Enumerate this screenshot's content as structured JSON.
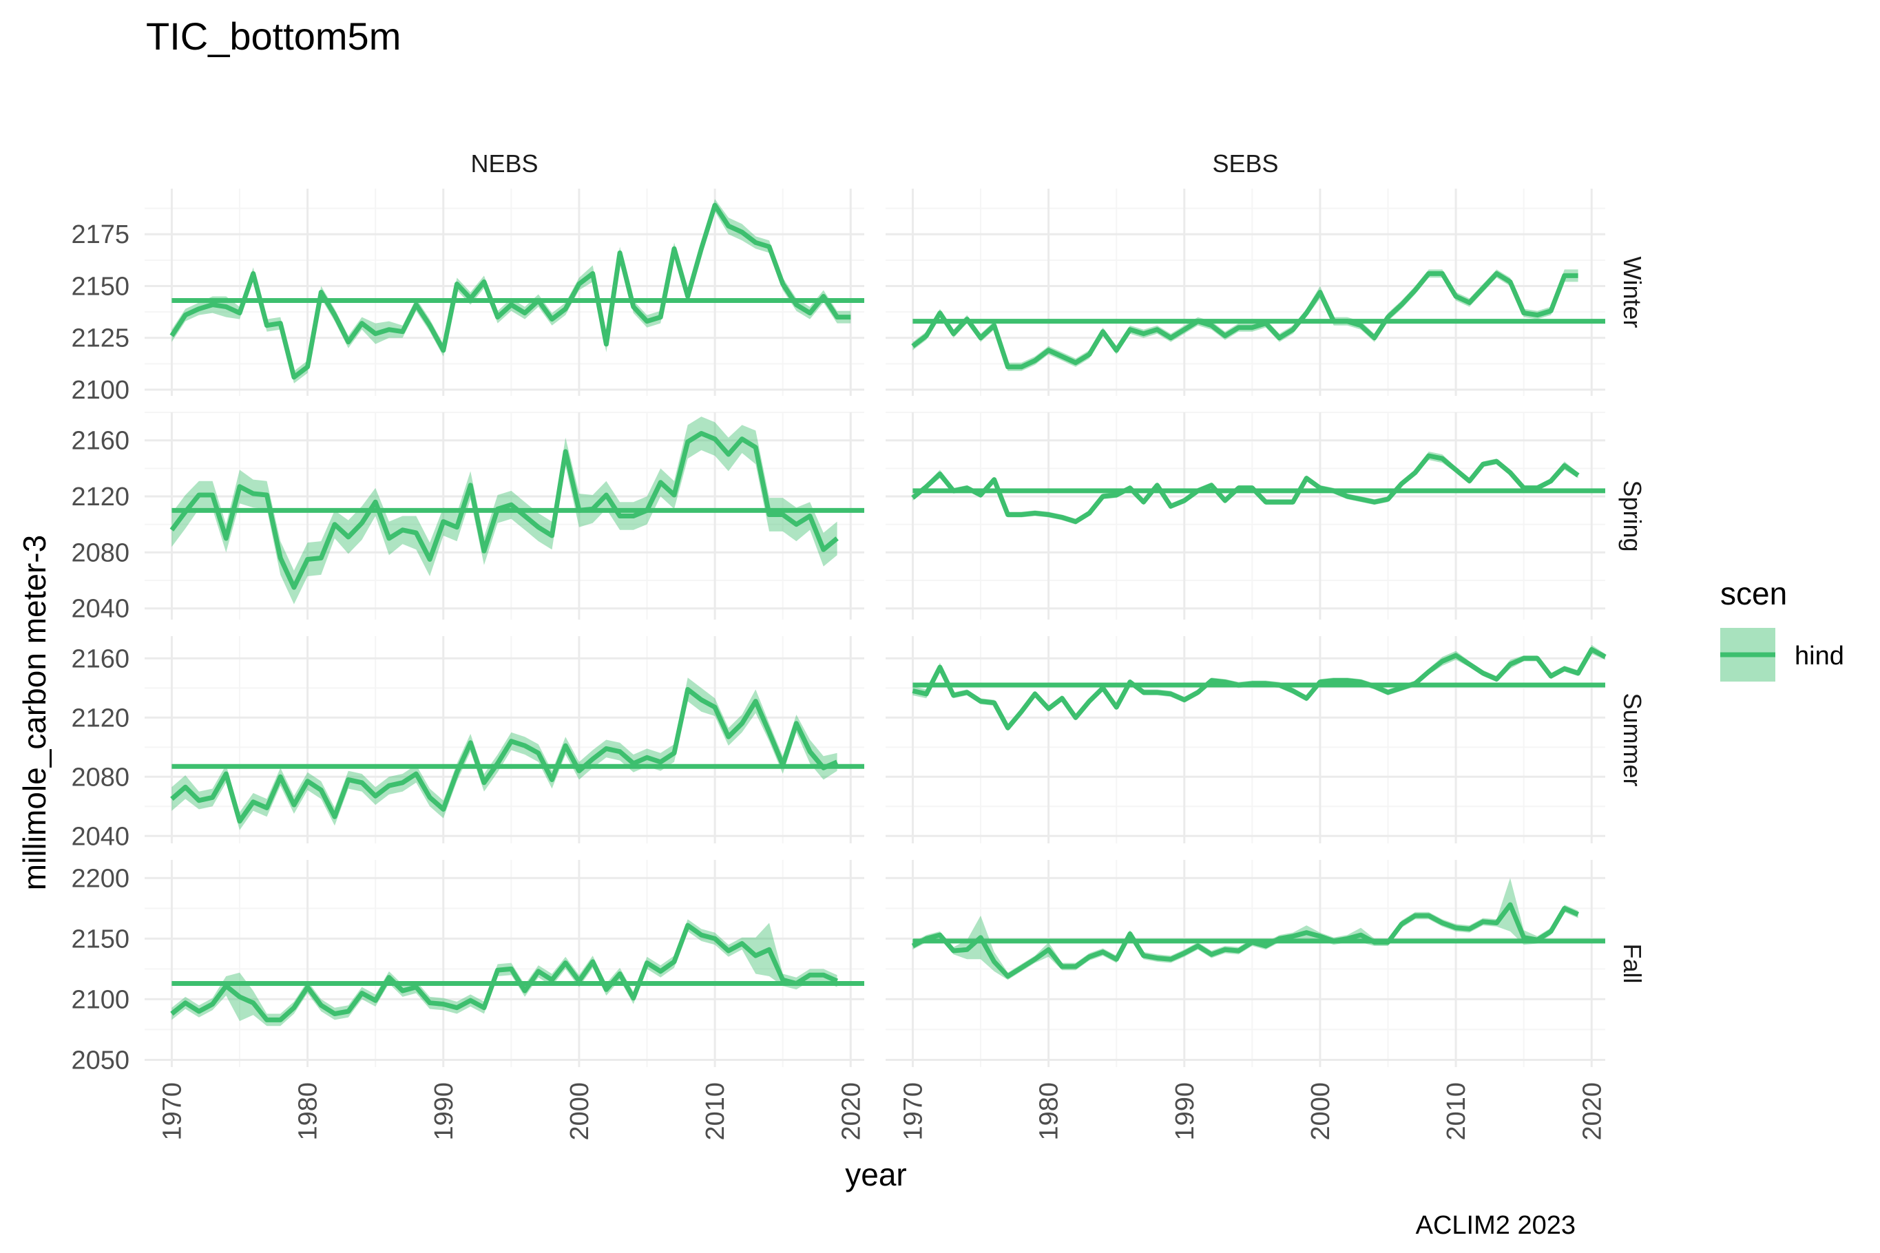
{
  "colors": {
    "series": "#3dbf6e",
    "ribbon": "#3dbf6e",
    "grid_major": "#ebebeb",
    "grid_minor": "#f5f5f5"
  },
  "chart_data": {
    "type": "line",
    "title": "TIC_bottom5m",
    "xlabel": "year",
    "ylabel": "millimole_carbon meter-3",
    "caption": "ACLIM2 2023",
    "legend": {
      "title": "scen",
      "entries": [
        "hind"
      ],
      "position": "right"
    },
    "columns": [
      "NEBS",
      "SEBS"
    ],
    "rows": [
      "Winter",
      "Spring",
      "Summer",
      "Fall"
    ],
    "xlim": [
      1968,
      2021
    ],
    "x_ticks": [
      1970,
      1980,
      1990,
      2000,
      2010,
      2020
    ],
    "x_tick_labels": [
      "1970",
      "1980",
      "1990",
      "2000",
      "2010",
      "2020"
    ],
    "row_axes": [
      {
        "ylim": [
          2097,
          2197
        ],
        "ticks": [
          2100,
          2125,
          2150,
          2175
        ],
        "tick_labels": [
          "2100",
          "2125",
          "2150",
          "2175"
        ]
      },
      {
        "ylim": [
          2032,
          2180
        ],
        "ticks": [
          2040,
          2080,
          2120,
          2160
        ],
        "tick_labels": [
          "2040",
          "2080",
          "2120",
          "2160"
        ]
      },
      {
        "ylim": [
          2035,
          2175
        ],
        "ticks": [
          2040,
          2080,
          2120,
          2160
        ],
        "tick_labels": [
          "2040",
          "2080",
          "2120",
          "2160"
        ]
      },
      {
        "ylim": [
          2044,
          2215
        ],
        "ticks": [
          2050,
          2100,
          2150,
          2200
        ],
        "tick_labels": [
          "2050",
          "2100",
          "2150",
          "2200"
        ]
      }
    ],
    "grid": true,
    "panels": [
      {
        "column": "NEBS",
        "row": "Winter",
        "mean": 2143,
        "x_start": 1970,
        "values": [
          2126,
          2136,
          2139,
          2141,
          2140,
          2137,
          2156,
          2131,
          2132,
          2106,
          2111,
          2147,
          2136,
          2123,
          2132,
          2127,
          2129,
          2128,
          2141,
          2131,
          2119,
          2151,
          2144,
          2152,
          2135,
          2141,
          2137,
          2143,
          2134,
          2139,
          2151,
          2156,
          2122,
          2166,
          2140,
          2133,
          2135,
          2168,
          2145,
          2168,
          2189,
          2179,
          2176,
          2171,
          2169,
          2151,
          2141,
          2137,
          2145,
          2135,
          2135
        ],
        "bands": [
          3,
          3,
          3,
          4,
          5,
          3,
          3,
          3,
          3,
          3,
          3,
          3,
          3,
          3,
          3,
          5,
          4,
          3,
          3,
          3,
          3,
          3,
          3,
          3,
          3,
          3,
          3,
          3,
          3,
          3,
          3,
          4,
          4,
          3,
          3,
          3,
          3,
          3,
          3,
          3,
          3,
          4,
          4,
          3,
          3,
          3,
          3,
          3,
          3,
          3,
          3
        ]
      },
      {
        "column": "SEBS",
        "row": "Winter",
        "mean": 2133,
        "x_start": 1970,
        "values": [
          2121,
          2126,
          2137,
          2127,
          2134,
          2125,
          2131,
          2111,
          2111,
          2114,
          2119,
          2116,
          2113,
          2117,
          2128,
          2119,
          2129,
          2127,
          2129,
          2125,
          2129,
          2133,
          2131,
          2126,
          2130,
          2130,
          2132,
          2125,
          2129,
          2137,
          2147,
          2133,
          2133,
          2131,
          2125,
          2135,
          2141,
          2148,
          2156,
          2156,
          2145,
          2142,
          2149,
          2156,
          2152,
          2137,
          2136,
          2138,
          2155,
          2155
        ],
        "bands": [
          2,
          2,
          2,
          2,
          2,
          2,
          2,
          2,
          2,
          2,
          2,
          2,
          2,
          2,
          2,
          2,
          2,
          2,
          2,
          2,
          2,
          2,
          2,
          2,
          2,
          2,
          2,
          2,
          2,
          2,
          3,
          2,
          2,
          2,
          2,
          2,
          2,
          2,
          2,
          2,
          2,
          2,
          2,
          2,
          2,
          2,
          2,
          2,
          3,
          3
        ]
      },
      {
        "column": "NEBS",
        "row": "Spring",
        "mean": 2110,
        "x_start": 1970,
        "values": [
          2096,
          2109,
          2121,
          2121,
          2090,
          2127,
          2122,
          2121,
          2076,
          2055,
          2075,
          2076,
          2100,
          2091,
          2101,
          2116,
          2090,
          2096,
          2094,
          2075,
          2102,
          2098,
          2128,
          2081,
          2111,
          2114,
          2106,
          2098,
          2092,
          2152,
          2110,
          2111,
          2121,
          2106,
          2106,
          2110,
          2130,
          2121,
          2159,
          2165,
          2161,
          2150,
          2161,
          2155,
          2107,
          2107,
          2100,
          2106,
          2082,
          2090
        ],
        "bands": [
          12,
          12,
          10,
          10,
          10,
          12,
          10,
          10,
          12,
          12,
          12,
          12,
          10,
          12,
          12,
          10,
          12,
          10,
          12,
          12,
          10,
          10,
          10,
          10,
          10,
          10,
          10,
          10,
          10,
          10,
          12,
          10,
          10,
          10,
          10,
          10,
          10,
          10,
          12,
          12,
          12,
          12,
          10,
          12,
          12,
          12,
          12,
          10,
          12,
          12
        ]
      },
      {
        "column": "SEBS",
        "row": "Spring",
        "mean": 2124,
        "x_start": 1970,
        "values": [
          2119,
          2127,
          2136,
          2124,
          2126,
          2121,
          2132,
          2107,
          2107,
          2108,
          2107,
          2105,
          2102,
          2108,
          2120,
          2121,
          2126,
          2116,
          2128,
          2113,
          2117,
          2124,
          2128,
          2117,
          2126,
          2126,
          2116,
          2116,
          2116,
          2133,
          2126,
          2124,
          2120,
          2118,
          2116,
          2118,
          2129,
          2137,
          2149,
          2147,
          2139,
          2131,
          2143,
          2145,
          2137,
          2126,
          2126,
          2131,
          2142,
          2135
        ],
        "bands": [
          2,
          2,
          3,
          2,
          2,
          2,
          2,
          2,
          2,
          2,
          2,
          2,
          2,
          2,
          2,
          2,
          2,
          2,
          2,
          2,
          2,
          2,
          2,
          2,
          2,
          2,
          2,
          2,
          2,
          2,
          2,
          2,
          2,
          2,
          2,
          2,
          2,
          2,
          3,
          3,
          2,
          2,
          2,
          2,
          2,
          2,
          2,
          2,
          3,
          2
        ]
      },
      {
        "column": "NEBS",
        "row": "Summer",
        "mean": 2087,
        "x_start": 1970,
        "values": [
          2065,
          2073,
          2064,
          2066,
          2082,
          2050,
          2063,
          2059,
          2080,
          2061,
          2077,
          2071,
          2053,
          2078,
          2076,
          2067,
          2074,
          2076,
          2082,
          2066,
          2058,
          2083,
          2103,
          2076,
          2089,
          2104,
          2101,
          2096,
          2078,
          2101,
          2084,
          2092,
          2099,
          2097,
          2089,
          2093,
          2090,
          2096,
          2139,
          2132,
          2127,
          2107,
          2116,
          2131,
          2110,
          2088,
          2116,
          2097,
          2086,
          2090
        ],
        "bands": [
          8,
          8,
          6,
          6,
          6,
          6,
          6,
          6,
          6,
          6,
          6,
          6,
          6,
          6,
          6,
          6,
          6,
          6,
          6,
          6,
          6,
          6,
          6,
          6,
          6,
          6,
          6,
          6,
          6,
          6,
          6,
          6,
          6,
          6,
          6,
          6,
          6,
          6,
          8,
          8,
          6,
          6,
          6,
          8,
          6,
          6,
          6,
          8,
          8,
          6
        ]
      },
      {
        "column": "SEBS",
        "row": "Summer",
        "mean": 2142,
        "x_start": 1970,
        "values": [
          2138,
          2136,
          2154,
          2135,
          2137,
          2131,
          2130,
          2113,
          2124,
          2136,
          2126,
          2133,
          2120,
          2131,
          2140,
          2127,
          2144,
          2137,
          2137,
          2136,
          2132,
          2137,
          2145,
          2144,
          2142,
          2143,
          2143,
          2142,
          2138,
          2133,
          2144,
          2145,
          2145,
          2144,
          2141,
          2137,
          2140,
          2143,
          2151,
          2158,
          2162,
          2156,
          2150,
          2146,
          2156,
          2160,
          2160,
          2148,
          2153,
          2150,
          2166,
          2161
        ],
        "bands": [
          3,
          3,
          3,
          2,
          2,
          2,
          2,
          2,
          2,
          2,
          2,
          2,
          2,
          2,
          2,
          2,
          2,
          2,
          2,
          2,
          2,
          2,
          2,
          2,
          2,
          2,
          2,
          2,
          2,
          2,
          2,
          2,
          2,
          2,
          2,
          2,
          2,
          2,
          2,
          3,
          3,
          2,
          2,
          2,
          3,
          2,
          2,
          2,
          2,
          2,
          3,
          2
        ]
      },
      {
        "column": "NEBS",
        "row": "Fall",
        "mean": 2113,
        "x_start": 1970,
        "values": [
          2088,
          2097,
          2090,
          2096,
          2111,
          2102,
          2097,
          2083,
          2083,
          2093,
          2110,
          2095,
          2088,
          2090,
          2105,
          2099,
          2118,
          2107,
          2110,
          2097,
          2096,
          2093,
          2099,
          2093,
          2124,
          2125,
          2107,
          2123,
          2116,
          2130,
          2115,
          2131,
          2108,
          2121,
          2101,
          2130,
          2123,
          2131,
          2161,
          2153,
          2150,
          2140,
          2146,
          2136,
          2141,
          2116,
          2113,
          2120,
          2120,
          2115
        ],
        "bands": [
          5,
          5,
          5,
          5,
          8,
          20,
          10,
          5,
          5,
          5,
          5,
          5,
          5,
          5,
          5,
          5,
          5,
          5,
          5,
          5,
          5,
          5,
          5,
          5,
          5,
          5,
          5,
          5,
          5,
          5,
          5,
          5,
          5,
          5,
          5,
          5,
          5,
          5,
          5,
          5,
          5,
          5,
          5,
          15,
          22,
          5,
          5,
          5,
          5,
          5
        ]
      },
      {
        "column": "SEBS",
        "row": "Fall",
        "mean": 2148,
        "x_start": 1970,
        "values": [
          2144,
          2150,
          2153,
          2140,
          2141,
          2151,
          2131,
          2119,
          2126,
          2133,
          2141,
          2127,
          2127,
          2135,
          2139,
          2133,
          2154,
          2136,
          2134,
          2133,
          2138,
          2144,
          2137,
          2141,
          2140,
          2147,
          2144,
          2150,
          2152,
          2155,
          2152,
          2148,
          2150,
          2153,
          2147,
          2147,
          2162,
          2169,
          2169,
          2163,
          2159,
          2158,
          2164,
          2163,
          2178,
          2151,
          2149,
          2156,
          2175,
          2170
        ],
        "bands": [
          3,
          3,
          3,
          3,
          8,
          18,
          8,
          3,
          3,
          3,
          6,
          3,
          3,
          3,
          3,
          3,
          3,
          3,
          3,
          3,
          3,
          3,
          3,
          3,
          3,
          3,
          3,
          3,
          3,
          6,
          3,
          3,
          3,
          6,
          3,
          3,
          3,
          3,
          3,
          3,
          3,
          3,
          3,
          3,
          22,
          6,
          3,
          3,
          3,
          3
        ]
      }
    ]
  }
}
